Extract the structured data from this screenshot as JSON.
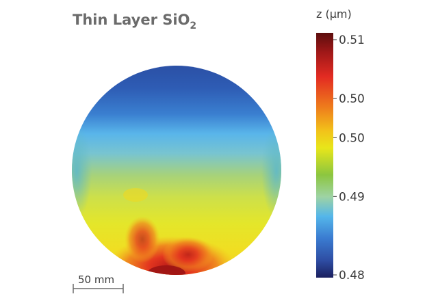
{
  "title": {
    "main": "Thin Layer SiO",
    "subscript": "2"
  },
  "chart_data": {
    "type": "heatmap",
    "title": "Thin Layer SiO₂",
    "shape": "circular wafer",
    "colorbar": {
      "label": "z (µm)",
      "min": 0.48,
      "max": 0.51,
      "tick_labels": [
        "0.51",
        "0.50",
        "0.50",
        "0.49",
        "0.48"
      ],
      "tick_values": [
        0.51,
        0.5025,
        0.4975,
        0.49,
        0.48
      ],
      "colormap": [
        "#1a1f5e",
        "#2e4da3",
        "#3a7bd0",
        "#54b6ea",
        "#9ed3a4",
        "#8cc63f",
        "#e8e61a",
        "#f2c21a",
        "#ee7a1c",
        "#e32b22",
        "#a01818",
        "#5c0d0d"
      ]
    },
    "scale_bar": {
      "label": "50 mm",
      "length_mm": 50
    },
    "gradient_description": [
      0.483,
      0.487,
      0.491,
      0.495,
      0.498,
      0.501,
      0.503,
      0.505
    ]
  }
}
